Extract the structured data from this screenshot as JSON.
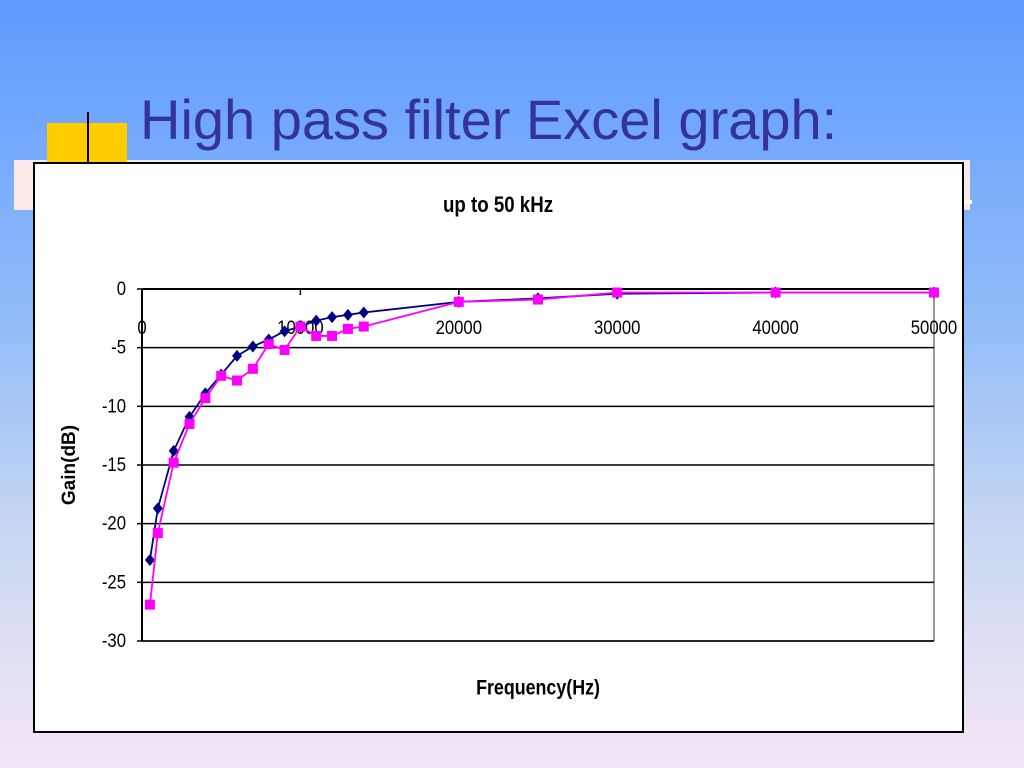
{
  "heading": "High pass filter Excel graph:",
  "chart_data": {
    "type": "line",
    "title": "up to 50 kHz",
    "x_label": "Frequency(Hz)",
    "y_label": "Gain(dB)",
    "xlim": [
      0,
      50000
    ],
    "xticks": [
      0,
      10000,
      20000,
      30000,
      40000,
      50000
    ],
    "ylim": [
      -30,
      0
    ],
    "yticks": [
      0,
      -5,
      -10,
      -15,
      -20,
      -25,
      -30
    ],
    "grid": true,
    "series": [
      {
        "color": "#000080",
        "marker": "diamond",
        "x": [
          500,
          1000,
          2000,
          3000,
          4000,
          5000,
          6000,
          7000,
          8000,
          9000,
          10000,
          11000,
          12000,
          13000,
          14000,
          20000,
          25000,
          30000,
          40000,
          50000
        ],
        "values": [
          -23.1,
          -18.7,
          -13.8,
          -10.9,
          -8.9,
          -7.3,
          -5.7,
          -4.9,
          -4.3,
          -3.6,
          -3.2,
          -2.7,
          -2.4,
          -2.2,
          -2.0,
          -1.1,
          -0.8,
          -0.4,
          -0.3,
          -0.3
        ]
      },
      {
        "color": "#ff00ff",
        "marker": "square",
        "x": [
          500,
          1000,
          2000,
          3000,
          4000,
          5000,
          6000,
          7000,
          8000,
          9000,
          10000,
          11000,
          12000,
          13000,
          14000,
          20000,
          25000,
          30000,
          40000,
          50000
        ],
        "values": [
          -26.9,
          -20.8,
          -14.8,
          -11.5,
          -9.3,
          -7.4,
          -7.8,
          -6.8,
          -4.7,
          -5.2,
          -3.2,
          -4.0,
          -4.0,
          -3.4,
          -3.2,
          -1.1,
          -0.9,
          -0.3,
          -0.3,
          -0.3
        ]
      }
    ]
  }
}
